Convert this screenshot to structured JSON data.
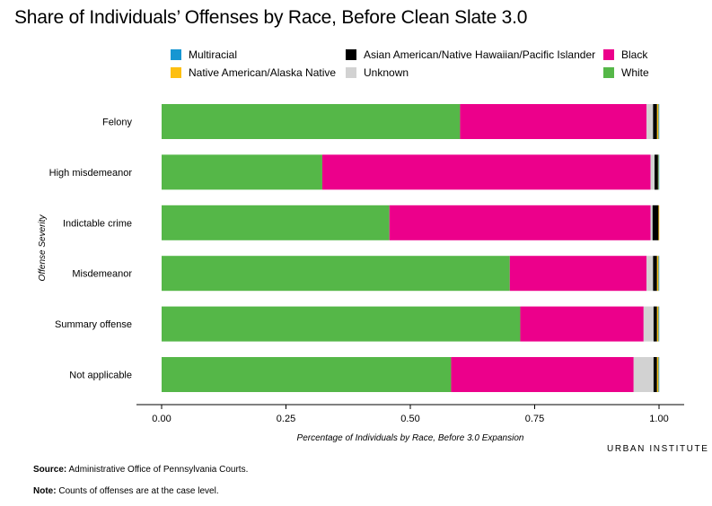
{
  "title": "Share of Individuals’ Offenses by Race, Before Clean Slate 3.0",
  "legend": [
    {
      "label": "Multiracial",
      "color": "#1696d2"
    },
    {
      "label": "Native American/Alaska Native",
      "color": "#fdbf11"
    },
    {
      "label": "Asian American/Native Hawaiian/Pacific Islander",
      "color": "#000000"
    },
    {
      "label": "Unknown",
      "color": "#d2d2d2"
    },
    {
      "label": "Black",
      "color": "#ec008b"
    },
    {
      "label": "White",
      "color": "#55b748"
    }
  ],
  "chart_data": {
    "type": "bar",
    "orientation": "horizontal",
    "stacked": true,
    "categories": [
      "Felony",
      "High misdemeanor",
      "Indictable crime",
      "Misdemeanor",
      "Summary offense",
      "Not applicable"
    ],
    "series": [
      {
        "name": "White",
        "color": "#55b748",
        "values": [
          0.6,
          0.323,
          0.458,
          0.7,
          0.721,
          0.582
        ]
      },
      {
        "name": "Black",
        "color": "#ec008b",
        "values": [
          0.375,
          0.66,
          0.525,
          0.275,
          0.248,
          0.367
        ]
      },
      {
        "name": "Unknown",
        "color": "#d2d2d2",
        "values": [
          0.013,
          0.008,
          0.004,
          0.013,
          0.02,
          0.04
        ]
      },
      {
        "name": "Asian American/Native Hawaiian/Pacific Islander",
        "color": "#000000",
        "values": [
          0.008,
          0.007,
          0.012,
          0.008,
          0.007,
          0.007
        ]
      },
      {
        "name": "Native American/Alaska Native",
        "color": "#fdbf11",
        "values": [
          0.003,
          0.001,
          0.001,
          0.003,
          0.003,
          0.003
        ]
      },
      {
        "name": "Multiracial",
        "color": "#1696d2",
        "values": [
          0.001,
          0.001,
          0.0,
          0.001,
          0.001,
          0.001
        ]
      }
    ],
    "xlabel": "Percentage of Individuals by Race, Before 3.0 Expansion",
    "ylabel": "Offense Severity",
    "xlim": [
      0,
      1
    ],
    "xticks": [
      "0.00",
      "0.25",
      "0.50",
      "0.75",
      "1.00"
    ],
    "grid": false
  },
  "brand": {
    "part1": "URBAN",
    "part2": "INSTITUTE"
  },
  "source": {
    "label": "Source:",
    "text": " Administrative Office of Pennsylvania Courts."
  },
  "note": {
    "label": "Note:",
    "text": " Counts of offenses are at the case level."
  }
}
